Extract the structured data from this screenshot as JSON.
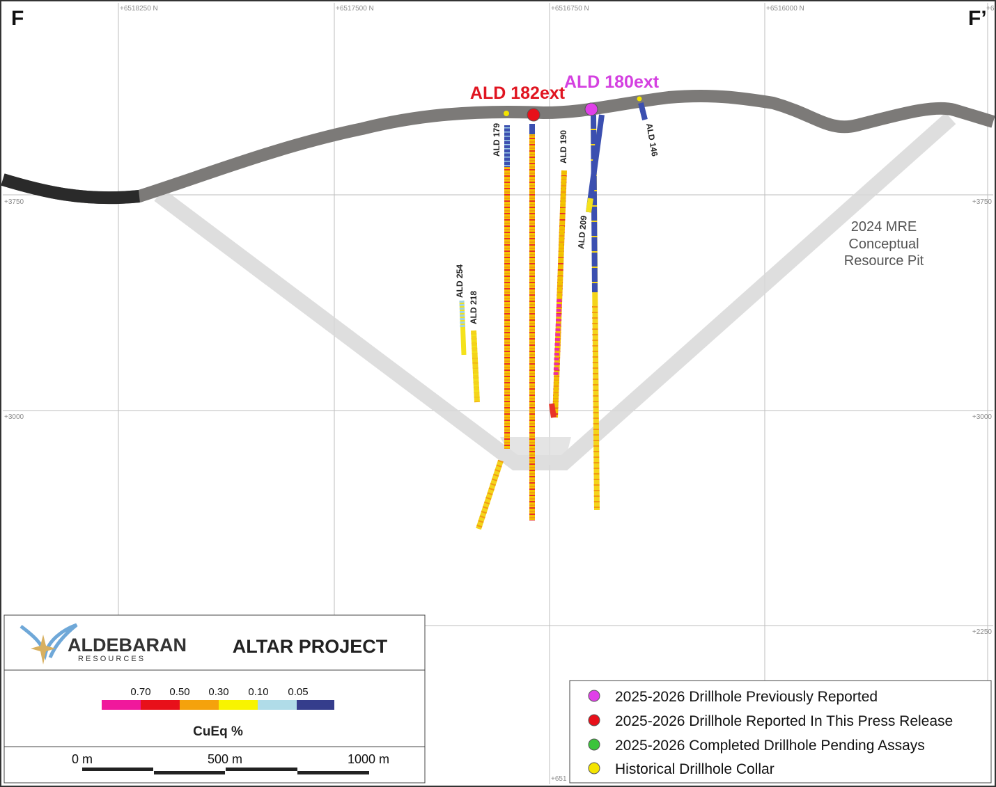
{
  "section": {
    "start_label": "F",
    "end_label": "F’",
    "northings": [
      "+6518250 N",
      "+6517500 N",
      "+6516750 N",
      "+6516000 N",
      "+6"
    ],
    "elevations_left": [
      "+3750",
      "+3000"
    ],
    "elevations_right": [
      "+3750",
      "+3000",
      "+2250"
    ],
    "bottom_label": "+651"
  },
  "drillholes": {
    "ald182ext": "ALD 182ext",
    "ald180ext": "ALD 180ext",
    "ald179": "ALD 179",
    "ald190": "ALD 190",
    "ald146": "ALD 146",
    "ald209": "ALD 209",
    "ald254": "ALD 254",
    "ald218": "ALD 218"
  },
  "pit_label": [
    "2024 MRE",
    "Conceptual",
    "Resource Pit"
  ],
  "logo": {
    "name": "ALDEBARAN",
    "sub": "R E S O U R C E S",
    "project": "ALTAR PROJECT"
  },
  "grade_legend": {
    "thresholds": [
      "0.70",
      "0.50",
      "0.30",
      "0.10",
      "0.05"
    ],
    "title": "CuEq %"
  },
  "scale_bar": [
    "0 m",
    "500 m",
    "1000 m"
  ],
  "legend": [
    "2025-2026 Drillhole Previously Reported",
    "2025-2026 Drillhole Reported In This Press Release",
    "2025-2026 Completed Drillhole Pending Assays",
    "Historical Drillhole Collar"
  ]
}
